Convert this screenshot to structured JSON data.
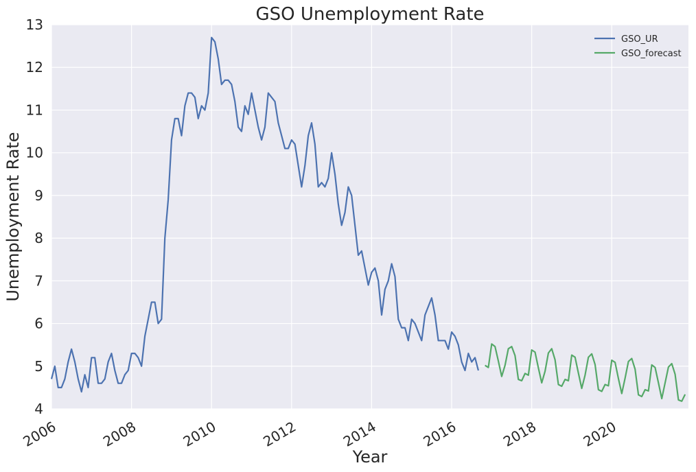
{
  "chart_data": {
    "type": "line",
    "title": "GSO Unemployment Rate",
    "xlabel": "Year",
    "ylabel": "Unemployment Rate",
    "xlim": [
      "2006-01",
      "2021-12"
    ],
    "ylim": [
      4,
      13
    ],
    "xticks": [
      "2006",
      "2008",
      "2010",
      "2012",
      "2014",
      "2016",
      "2018",
      "2020"
    ],
    "yticks": [
      "4",
      "5",
      "6",
      "7",
      "8",
      "9",
      "10",
      "11",
      "12",
      "13"
    ],
    "grid": true,
    "legend_position": "top-right",
    "colors": {
      "background": "#eaeaf2",
      "GSO_UR": "#4c72b0",
      "GSO_forecast": "#55a868"
    },
    "series": [
      {
        "name": "GSO_UR",
        "points": [
          [
            "2006-01",
            4.7
          ],
          [
            "2006-02",
            5.0
          ],
          [
            "2006-03",
            4.5
          ],
          [
            "2006-04",
            4.5
          ],
          [
            "2006-05",
            4.7
          ],
          [
            "2006-06",
            5.1
          ],
          [
            "2006-07",
            5.4
          ],
          [
            "2006-08",
            5.1
          ],
          [
            "2006-09",
            4.7
          ],
          [
            "2006-10",
            4.4
          ],
          [
            "2006-11",
            4.8
          ],
          [
            "2006-12",
            4.5
          ],
          [
            "2007-01",
            5.2
          ],
          [
            "2007-02",
            5.2
          ],
          [
            "2007-03",
            4.6
          ],
          [
            "2007-04",
            4.6
          ],
          [
            "2007-05",
            4.7
          ],
          [
            "2007-06",
            5.1
          ],
          [
            "2007-07",
            5.3
          ],
          [
            "2007-08",
            4.9
          ],
          [
            "2007-09",
            4.6
          ],
          [
            "2007-10",
            4.6
          ],
          [
            "2007-11",
            4.8
          ],
          [
            "2007-12",
            4.9
          ],
          [
            "2008-01",
            5.3
          ],
          [
            "2008-02",
            5.3
          ],
          [
            "2008-03",
            5.2
          ],
          [
            "2008-04",
            5.0
          ],
          [
            "2008-05",
            5.7
          ],
          [
            "2008-06",
            6.1
          ],
          [
            "2008-07",
            6.5
          ],
          [
            "2008-08",
            6.5
          ],
          [
            "2008-09",
            6.0
          ],
          [
            "2008-10",
            6.1
          ],
          [
            "2008-11",
            8.0
          ],
          [
            "2008-12",
            8.9
          ],
          [
            "2009-01",
            10.3
          ],
          [
            "2009-02",
            10.8
          ],
          [
            "2009-03",
            10.8
          ],
          [
            "2009-04",
            10.4
          ],
          [
            "2009-05",
            11.1
          ],
          [
            "2009-06",
            11.4
          ],
          [
            "2009-07",
            11.4
          ],
          [
            "2009-08",
            11.3
          ],
          [
            "2009-09",
            10.8
          ],
          [
            "2009-10",
            11.1
          ],
          [
            "2009-11",
            11.0
          ],
          [
            "2009-12",
            11.4
          ],
          [
            "2010-01",
            12.7
          ],
          [
            "2010-02",
            12.6
          ],
          [
            "2010-03",
            12.2
          ],
          [
            "2010-04",
            11.6
          ],
          [
            "2010-05",
            11.7
          ],
          [
            "2010-06",
            11.7
          ],
          [
            "2010-07",
            11.6
          ],
          [
            "2010-08",
            11.2
          ],
          [
            "2010-09",
            10.6
          ],
          [
            "2010-10",
            10.5
          ],
          [
            "2010-11",
            11.1
          ],
          [
            "2010-12",
            10.9
          ],
          [
            "2011-01",
            11.4
          ],
          [
            "2011-02",
            11.0
          ],
          [
            "2011-03",
            10.6
          ],
          [
            "2011-04",
            10.3
          ],
          [
            "2011-05",
            10.6
          ],
          [
            "2011-06",
            11.4
          ],
          [
            "2011-07",
            11.3
          ],
          [
            "2011-08",
            11.2
          ],
          [
            "2011-09",
            10.7
          ],
          [
            "2011-10",
            10.4
          ],
          [
            "2011-11",
            10.1
          ],
          [
            "2011-12",
            10.1
          ],
          [
            "2012-01",
            10.3
          ],
          [
            "2012-02",
            10.2
          ],
          [
            "2012-03",
            9.7
          ],
          [
            "2012-04",
            9.2
          ],
          [
            "2012-05",
            9.7
          ],
          [
            "2012-06",
            10.4
          ],
          [
            "2012-07",
            10.7
          ],
          [
            "2012-08",
            10.2
          ],
          [
            "2012-09",
            9.2
          ],
          [
            "2012-10",
            9.3
          ],
          [
            "2012-11",
            9.2
          ],
          [
            "2012-12",
            9.4
          ],
          [
            "2013-01",
            10.0
          ],
          [
            "2013-02",
            9.5
          ],
          [
            "2013-03",
            8.8
          ],
          [
            "2013-04",
            8.3
          ],
          [
            "2013-05",
            8.6
          ],
          [
            "2013-06",
            9.2
          ],
          [
            "2013-07",
            9.0
          ],
          [
            "2013-08",
            8.3
          ],
          [
            "2013-09",
            7.6
          ],
          [
            "2013-10",
            7.7
          ],
          [
            "2013-11",
            7.3
          ],
          [
            "2013-12",
            6.9
          ],
          [
            "2014-01",
            7.2
          ],
          [
            "2014-02",
            7.3
          ],
          [
            "2014-03",
            7.0
          ],
          [
            "2014-04",
            6.2
          ],
          [
            "2014-05",
            6.8
          ],
          [
            "2014-06",
            7.0
          ],
          [
            "2014-07",
            7.4
          ],
          [
            "2014-08",
            7.1
          ],
          [
            "2014-09",
            6.1
          ],
          [
            "2014-10",
            5.9
          ],
          [
            "2014-11",
            5.9
          ],
          [
            "2014-12",
            5.6
          ],
          [
            "2015-01",
            6.1
          ],
          [
            "2015-02",
            6.0
          ],
          [
            "2015-03",
            5.8
          ],
          [
            "2015-04",
            5.6
          ],
          [
            "2015-05",
            6.2
          ],
          [
            "2015-06",
            6.4
          ],
          [
            "2015-07",
            6.6
          ],
          [
            "2015-08",
            6.2
          ],
          [
            "2015-09",
            5.6
          ],
          [
            "2015-10",
            5.6
          ],
          [
            "2015-11",
            5.6
          ],
          [
            "2015-12",
            5.4
          ],
          [
            "2016-01",
            5.8
          ],
          [
            "2016-02",
            5.7
          ],
          [
            "2016-03",
            5.5
          ],
          [
            "2016-04",
            5.1
          ],
          [
            "2016-05",
            4.9
          ],
          [
            "2016-06",
            5.3
          ],
          [
            "2016-07",
            5.1
          ],
          [
            "2016-08",
            5.2
          ],
          [
            "2016-09",
            4.9
          ]
        ]
      },
      {
        "name": "GSO_forecast",
        "points": [
          [
            "2016-11",
            5.02
          ],
          [
            "2016-12",
            4.97
          ],
          [
            "2017-01",
            5.52
          ],
          [
            "2017-02",
            5.46
          ],
          [
            "2017-03",
            5.12
          ],
          [
            "2017-04",
            4.76
          ],
          [
            "2017-05",
            5.02
          ],
          [
            "2017-06",
            5.41
          ],
          [
            "2017-07",
            5.46
          ],
          [
            "2017-08",
            5.25
          ],
          [
            "2017-09",
            4.69
          ],
          [
            "2017-10",
            4.66
          ],
          [
            "2017-11",
            4.83
          ],
          [
            "2017-12",
            4.79
          ],
          [
            "2018-01",
            5.38
          ],
          [
            "2018-02",
            5.33
          ],
          [
            "2018-03",
            4.96
          ],
          [
            "2018-04",
            4.61
          ],
          [
            "2018-05",
            4.88
          ],
          [
            "2018-06",
            5.31
          ],
          [
            "2018-07",
            5.41
          ],
          [
            "2018-08",
            5.15
          ],
          [
            "2018-09",
            4.57
          ],
          [
            "2018-10",
            4.53
          ],
          [
            "2018-11",
            4.69
          ],
          [
            "2018-12",
            4.66
          ],
          [
            "2019-01",
            5.26
          ],
          [
            "2019-02",
            5.21
          ],
          [
            "2019-03",
            4.84
          ],
          [
            "2019-04",
            4.48
          ],
          [
            "2019-05",
            4.79
          ],
          [
            "2019-06",
            5.21
          ],
          [
            "2019-07",
            5.29
          ],
          [
            "2019-08",
            5.04
          ],
          [
            "2019-09",
            4.45
          ],
          [
            "2019-10",
            4.41
          ],
          [
            "2019-11",
            4.57
          ],
          [
            "2019-12",
            4.54
          ],
          [
            "2020-01",
            5.14
          ],
          [
            "2020-02",
            5.09
          ],
          [
            "2020-03",
            4.71
          ],
          [
            "2020-04",
            4.36
          ],
          [
            "2020-05",
            4.72
          ],
          [
            "2020-06",
            5.11
          ],
          [
            "2020-07",
            5.18
          ],
          [
            "2020-08",
            4.93
          ],
          [
            "2020-09",
            4.33
          ],
          [
            "2020-10",
            4.29
          ],
          [
            "2020-11",
            4.45
          ],
          [
            "2020-12",
            4.42
          ],
          [
            "2021-01",
            5.03
          ],
          [
            "2021-02",
            4.97
          ],
          [
            "2021-03",
            4.61
          ],
          [
            "2021-04",
            4.24
          ],
          [
            "2021-05",
            4.61
          ],
          [
            "2021-06",
            4.98
          ],
          [
            "2021-07",
            5.06
          ],
          [
            "2021-08",
            4.81
          ],
          [
            "2021-09",
            4.21
          ],
          [
            "2021-10",
            4.18
          ],
          [
            "2021-11",
            4.34
          ]
        ]
      }
    ]
  }
}
